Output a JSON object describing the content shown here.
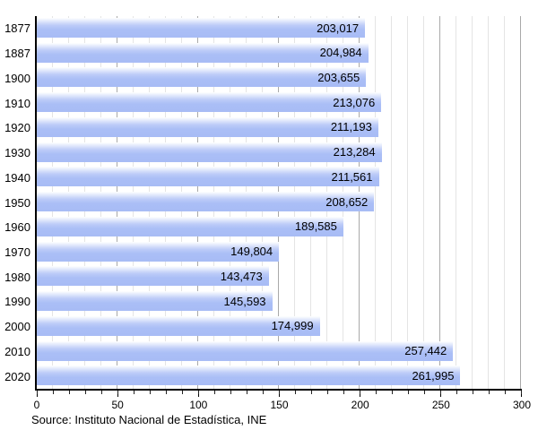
{
  "chart_data": {
    "type": "bar",
    "orientation": "horizontal",
    "title": "",
    "xlabel": "",
    "ylabel": "",
    "categories": [
      "1877",
      "1887",
      "1900",
      "1910",
      "1920",
      "1930",
      "1940",
      "1950",
      "1960",
      "1970",
      "1980",
      "1990",
      "2000",
      "2010",
      "2020"
    ],
    "values": [
      203017,
      204984,
      203655,
      213076,
      211193,
      213284,
      211561,
      208652,
      189585,
      149804,
      143473,
      145593,
      174999,
      257442,
      261995
    ],
    "value_labels": [
      "203,017",
      "204,984",
      "203,655",
      "213,076",
      "211,193",
      "213,284",
      "211,561",
      "208,652",
      "189,585",
      "149,804",
      "143,473",
      "145,593",
      "174,999",
      "257,442",
      "261,995"
    ],
    "x_ticks": [
      "0",
      "50",
      "100",
      "150",
      "200",
      "250",
      "300"
    ],
    "xlim": [
      0,
      300
    ],
    "axis_scale": 1000,
    "grid": {
      "minor_interval": 10,
      "major_interval": 50,
      "minor_color": "#e4e4e4",
      "major_color": "#a9a9a9"
    },
    "legend": "none",
    "bar_color": "#a8bcf5",
    "bar_highlight_color": "#ffffff",
    "axis_color": "#000000",
    "source_note": "Source: Instituto Nacional de Estadística, INE"
  }
}
